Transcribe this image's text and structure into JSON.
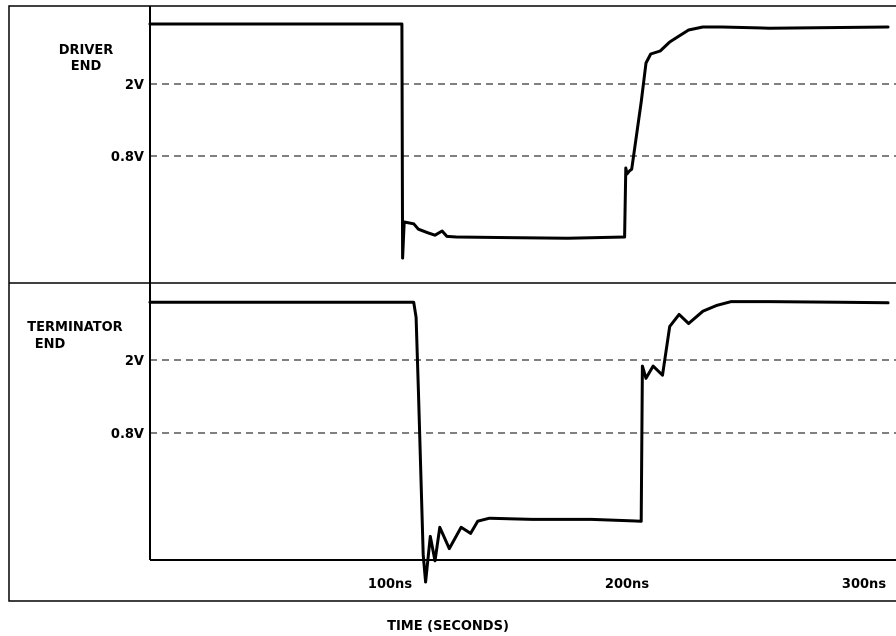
{
  "chart_data": [
    {
      "type": "line",
      "panel_label": [
        "DRIVER",
        "END"
      ],
      "y_refs": [
        {
          "label": "2V",
          "value": 2.0
        },
        {
          "label": "0.8V",
          "value": 0.8
        }
      ],
      "grid": "dashed horizontal at 2V and 0.8V",
      "series": [
        {
          "points": [
            [
              -20,
              3.0
            ],
            [
              105,
              3.0
            ],
            [
              105.3,
              -0.9
            ],
            [
              106,
              -0.3
            ],
            [
              110,
              -0.33
            ],
            [
              112,
              -0.42
            ],
            [
              116,
              -0.48
            ],
            [
              119,
              -0.52
            ],
            [
              122,
              -0.45
            ],
            [
              124,
              -0.54
            ],
            [
              128,
              -0.55
            ],
            [
              150,
              -0.56
            ],
            [
              175,
              -0.57
            ],
            [
              199,
              -0.55
            ],
            [
              199.5,
              0.6
            ],
            [
              200,
              0.5
            ],
            [
              201,
              0.55
            ],
            [
              202,
              0.58
            ],
            [
              206,
              1.7
            ],
            [
              208,
              2.35
            ],
            [
              210,
              2.5
            ],
            [
              214,
              2.55
            ],
            [
              218,
              2.7
            ],
            [
              222,
              2.8
            ],
            [
              226,
              2.9
            ],
            [
              232,
              2.95
            ],
            [
              240,
              2.95
            ],
            [
              260,
              2.93
            ],
            [
              320,
              2.95
            ]
          ]
        }
      ]
    },
    {
      "type": "line",
      "panel_label": [
        "TERMINATOR",
        "END"
      ],
      "y_refs": [
        {
          "label": "2V",
          "value": 2.0
        },
        {
          "label": "0.8V",
          "value": 0.8
        }
      ],
      "grid": "dashed horizontal at 2V and 0.8V",
      "series": [
        {
          "points": [
            [
              -20,
              2.95
            ],
            [
              110,
              2.95
            ],
            [
              111,
              2.7
            ],
            [
              112,
              1.5
            ],
            [
              114,
              -1.2
            ],
            [
              115,
              -1.65
            ],
            [
              117,
              -0.9
            ],
            [
              119,
              -1.3
            ],
            [
              121,
              -0.75
            ],
            [
              125,
              -1.1
            ],
            [
              130,
              -0.75
            ],
            [
              134,
              -0.85
            ],
            [
              137,
              -0.65
            ],
            [
              142,
              -0.6
            ],
            [
              160,
              -0.62
            ],
            [
              185,
              -0.62
            ],
            [
              206,
              -0.65
            ],
            [
              206.5,
              1.9
            ],
            [
              208,
              1.7
            ],
            [
              211,
              1.9
            ],
            [
              215,
              1.75
            ],
            [
              218,
              2.55
            ],
            [
              222,
              2.75
            ],
            [
              226,
              2.6
            ],
            [
              232,
              2.8
            ],
            [
              238,
              2.9
            ],
            [
              244,
              2.96
            ],
            [
              260,
              2.96
            ],
            [
              290,
              2.95
            ],
            [
              320,
              2.94
            ]
          ]
        }
      ]
    }
  ],
  "x_axis": {
    "ticks": [
      {
        "label": "100ns",
        "value": 100
      },
      {
        "label": "200ns",
        "value": 200
      },
      {
        "label": "300ns",
        "value": 300
      }
    ],
    "label": "TIME (SECONDS)"
  }
}
